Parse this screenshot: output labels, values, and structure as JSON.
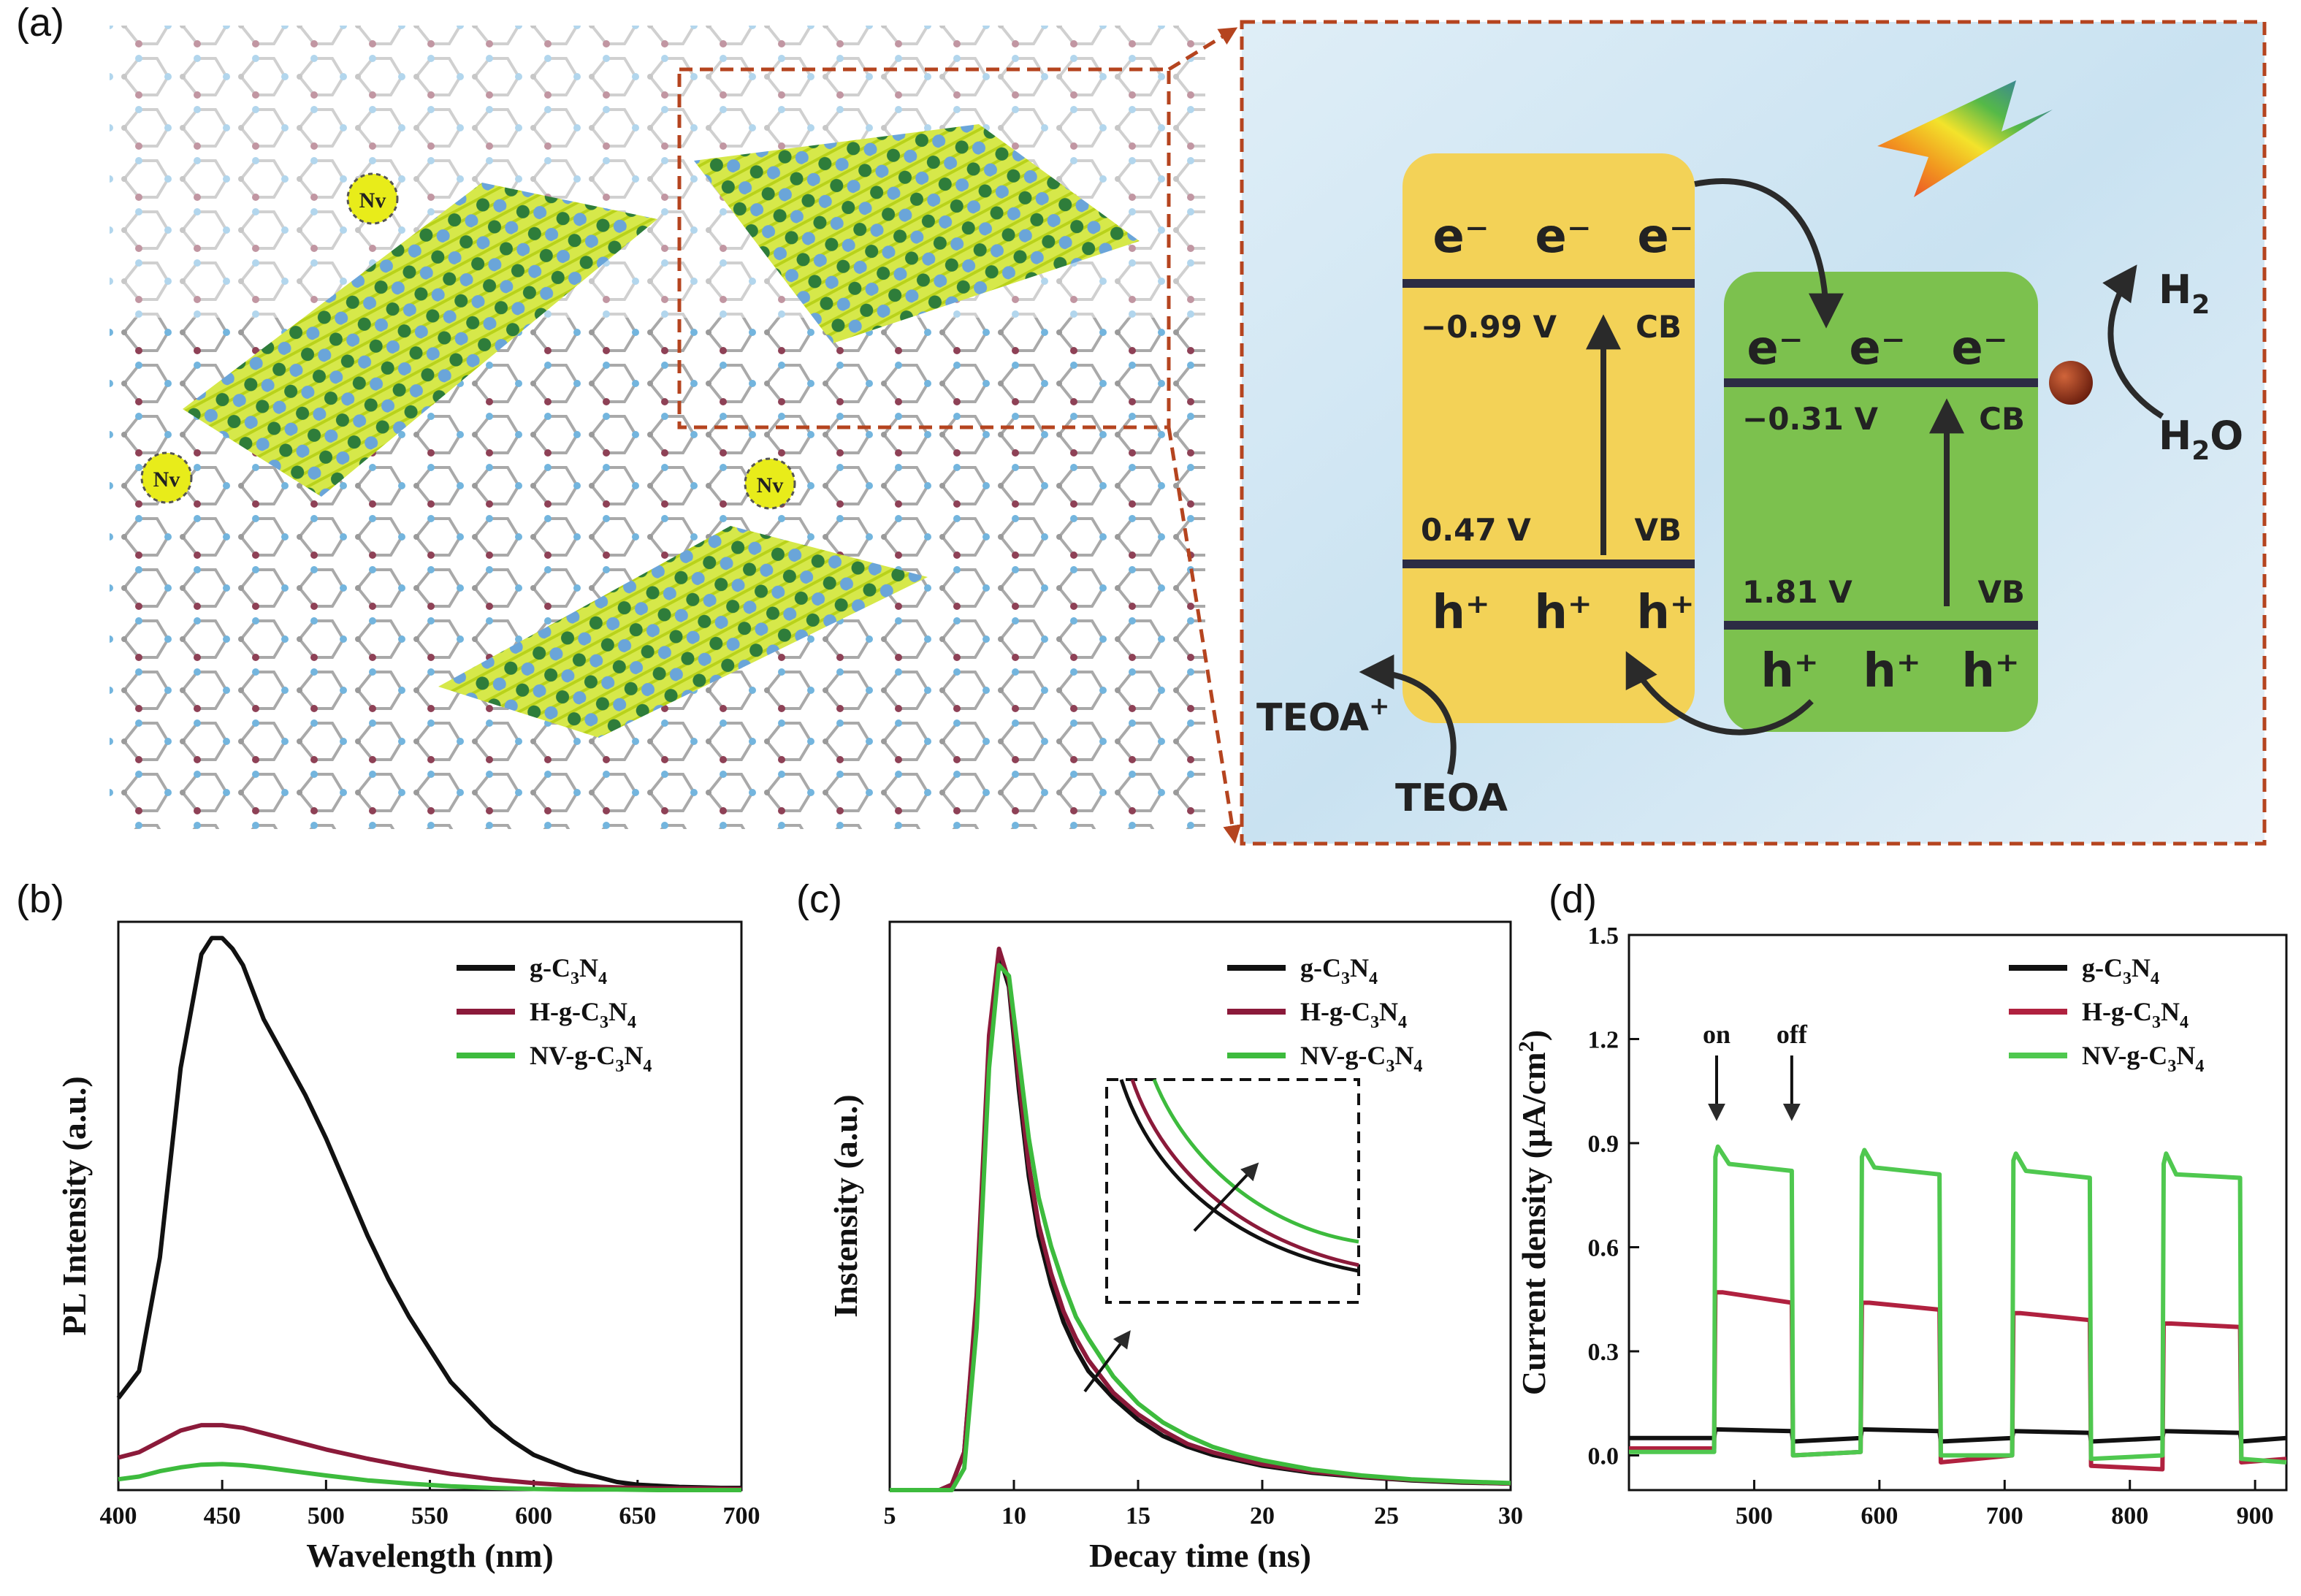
{
  "panels": {
    "a": "(a)",
    "b": "(b)",
    "c": "(c)",
    "d": "(d)"
  },
  "schematic": {
    "vacancy_label": "Nv",
    "electron": "e⁻",
    "hole": "h⁺",
    "left": {
      "cb_potential": "−0.99 V",
      "vb_potential": "0.47 V",
      "cb": "CB",
      "vb": "VB",
      "color": "#f3d257"
    },
    "right": {
      "cb_potential": "−0.31 V",
      "vb_potential": "1.81 V",
      "cb": "CB",
      "vb": "VB",
      "color": "#7cc14e"
    },
    "h2": "H",
    "h2_sub": "2",
    "h2o": "H",
    "h2o_sub": "2",
    "h2o_end": "O",
    "teoa": "TEOA",
    "teoa_plus": "TEOA",
    "teoa_plus_sup": "+"
  },
  "chart_data": [
    {
      "panel": "b",
      "type": "line",
      "xlabel": "Wavelength (nm)",
      "ylabel": "PL Intensity (a.u.)",
      "xlim": [
        400,
        700
      ],
      "xticks": [
        400,
        450,
        500,
        550,
        600,
        650,
        700
      ],
      "ylim": [
        0,
        1.05
      ],
      "legend": "top-right",
      "series": [
        {
          "name": "g-C3N4",
          "label_parts": [
            "g-C",
            "3",
            "N",
            "4"
          ],
          "color": "#111111",
          "x": [
            400,
            410,
            420,
            430,
            440,
            445,
            450,
            455,
            460,
            470,
            480,
            490,
            500,
            510,
            520,
            530,
            540,
            550,
            560,
            570,
            580,
            590,
            600,
            610,
            620,
            630,
            640,
            650,
            660,
            670,
            680,
            690,
            700
          ],
          "y": [
            0.17,
            0.22,
            0.43,
            0.78,
            0.99,
            1.02,
            1.02,
            1.0,
            0.97,
            0.87,
            0.8,
            0.73,
            0.65,
            0.56,
            0.47,
            0.39,
            0.32,
            0.26,
            0.2,
            0.16,
            0.12,
            0.09,
            0.065,
            0.05,
            0.035,
            0.025,
            0.015,
            0.01,
            0.008,
            0.006,
            0.005,
            0.004,
            0.004
          ]
        },
        {
          "name": "H-g-C3N4",
          "label_parts": [
            "H-g-C",
            "3",
            "N",
            "4"
          ],
          "color": "#8b1a3a",
          "x": [
            400,
            410,
            420,
            430,
            440,
            450,
            460,
            470,
            480,
            490,
            500,
            520,
            540,
            560,
            580,
            600,
            620,
            640,
            660,
            680,
            700
          ],
          "y": [
            0.06,
            0.07,
            0.09,
            0.11,
            0.12,
            0.12,
            0.115,
            0.105,
            0.095,
            0.085,
            0.075,
            0.058,
            0.043,
            0.03,
            0.02,
            0.013,
            0.008,
            0.005,
            0.003,
            0.003,
            0.002
          ]
        },
        {
          "name": "NV-g-C3N4",
          "label_parts": [
            "NV-g-C",
            "3",
            "N",
            "4"
          ],
          "color": "#3dbb3d",
          "x": [
            400,
            410,
            420,
            430,
            440,
            450,
            460,
            470,
            480,
            490,
            500,
            520,
            540,
            560,
            580,
            600,
            620,
            640,
            660,
            680,
            700
          ],
          "y": [
            0.02,
            0.025,
            0.035,
            0.042,
            0.047,
            0.048,
            0.046,
            0.042,
            0.037,
            0.032,
            0.027,
            0.018,
            0.012,
            0.007,
            0.004,
            0.002,
            0.001,
            0.001,
            0.0,
            0.0,
            0.0
          ]
        }
      ]
    },
    {
      "panel": "c",
      "type": "line",
      "xlabel": "Decay time (ns)",
      "ylabel": "Instensity (a.u.)",
      "xlim": [
        5,
        30
      ],
      "xticks": [
        5,
        10,
        15,
        20,
        25,
        30
      ],
      "ylim": [
        0,
        1.05
      ],
      "legend": "top-right",
      "series": [
        {
          "name": "g-C3N4",
          "label_parts": [
            "g-C",
            "3",
            "N",
            "4"
          ],
          "color": "#111111",
          "x": [
            5,
            6,
            7,
            7.5,
            8,
            8.5,
            9,
            9.4,
            9.8,
            10.2,
            10.6,
            11,
            11.5,
            12,
            12.5,
            13,
            14,
            15,
            16,
            17,
            18,
            19,
            20,
            22,
            24,
            26,
            28,
            30
          ],
          "y": [
            0.0,
            0.0,
            0.0,
            0.01,
            0.07,
            0.35,
            0.82,
            0.99,
            0.93,
            0.74,
            0.58,
            0.47,
            0.38,
            0.31,
            0.26,
            0.22,
            0.17,
            0.13,
            0.1,
            0.08,
            0.065,
            0.055,
            0.045,
            0.032,
            0.024,
            0.018,
            0.014,
            0.012
          ]
        },
        {
          "name": "H-g-C3N4",
          "label_parts": [
            "H-g-C",
            "3",
            "N",
            "4"
          ],
          "color": "#8b1a3a",
          "x": [
            5,
            6,
            7,
            7.5,
            8,
            8.5,
            9,
            9.4,
            9.8,
            10.2,
            10.6,
            11,
            11.5,
            12,
            12.5,
            13,
            14,
            15,
            16,
            17,
            18,
            19,
            20,
            22,
            24,
            26,
            28,
            30
          ],
          "y": [
            0.0,
            0.0,
            0.0,
            0.01,
            0.07,
            0.36,
            0.84,
            1.0,
            0.94,
            0.76,
            0.6,
            0.49,
            0.4,
            0.33,
            0.28,
            0.24,
            0.18,
            0.14,
            0.11,
            0.085,
            0.07,
            0.058,
            0.048,
            0.034,
            0.025,
            0.019,
            0.015,
            0.012
          ]
        },
        {
          "name": "NV-g-C3N4",
          "label_parts": [
            "NV-g-C",
            "3",
            "N",
            "4"
          ],
          "color": "#3dbb3d",
          "x": [
            5,
            6,
            7,
            7.5,
            8,
            8.5,
            9,
            9.4,
            9.8,
            10.2,
            10.6,
            11,
            11.5,
            12,
            12.5,
            13,
            14,
            15,
            16,
            17,
            18,
            19,
            20,
            22,
            24,
            26,
            28,
            30
          ],
          "y": [
            0.0,
            0.0,
            0.0,
            0.0,
            0.04,
            0.3,
            0.78,
            0.97,
            0.95,
            0.8,
            0.65,
            0.54,
            0.45,
            0.38,
            0.32,
            0.28,
            0.21,
            0.16,
            0.125,
            0.1,
            0.08,
            0.066,
            0.055,
            0.038,
            0.027,
            0.02,
            0.016,
            0.013
          ]
        }
      ],
      "annotations": []
    },
    {
      "panel": "d",
      "type": "line",
      "xlabel": "",
      "ylabel": "Current density (μA/cm²)",
      "ylabel_parts": [
        "Current density (μA/cm",
        "2",
        ")"
      ],
      "xlim": [
        400,
        925
      ],
      "xticks": [
        500,
        600,
        700,
        800,
        900
      ],
      "ylim": [
        -0.1,
        1.5
      ],
      "yticks": [
        0.0,
        0.3,
        0.6,
        0.9,
        1.2,
        1.5
      ],
      "legend": "top-right",
      "annotations": [
        {
          "text": "on",
          "x": 470
        },
        {
          "text": "off",
          "x": 530
        }
      ],
      "series": [
        {
          "name": "g-C3N4",
          "label_parts": [
            "g-C",
            "3",
            "N",
            "4"
          ],
          "color": "#111111",
          "x": [
            400,
            468,
            469,
            530,
            531,
            585,
            586,
            648,
            649,
            706,
            707,
            768,
            769,
            826,
            827,
            888,
            889,
            925
          ],
          "y": [
            0.05,
            0.05,
            0.075,
            0.07,
            0.04,
            0.05,
            0.075,
            0.07,
            0.04,
            0.05,
            0.07,
            0.065,
            0.04,
            0.05,
            0.07,
            0.065,
            0.04,
            0.05
          ]
        },
        {
          "name": "H-g-C3N4",
          "label_parts": [
            "H-g-C",
            "3",
            "N",
            "4"
          ],
          "color": "#b0213f",
          "x": [
            400,
            468,
            469,
            475,
            530,
            531,
            585,
            586,
            592,
            648,
            649,
            706,
            707,
            713,
            768,
            769,
            826,
            827,
            833,
            888,
            889,
            925
          ],
          "y": [
            0.02,
            0.02,
            0.47,
            0.47,
            0.44,
            0.0,
            0.01,
            0.44,
            0.44,
            0.42,
            -0.02,
            0.0,
            0.41,
            0.41,
            0.39,
            -0.03,
            -0.04,
            0.38,
            0.38,
            0.37,
            -0.02,
            -0.01
          ]
        },
        {
          "name": "NV-g-C3N4",
          "label_parts": [
            "NV-g-C",
            "3",
            "N",
            "4"
          ],
          "color": "#4fc84f",
          "x": [
            400,
            468,
            469,
            471,
            480,
            530,
            531,
            585,
            586,
            588,
            596,
            648,
            649,
            706,
            707,
            709,
            717,
            768,
            769,
            826,
            827,
            829,
            837,
            888,
            889,
            925
          ],
          "y": [
            0.01,
            0.01,
            0.86,
            0.89,
            0.84,
            0.82,
            0.0,
            0.01,
            0.86,
            0.88,
            0.83,
            0.81,
            0.0,
            0.0,
            0.85,
            0.87,
            0.82,
            0.8,
            -0.01,
            0.0,
            0.84,
            0.87,
            0.81,
            0.8,
            -0.01,
            -0.02
          ]
        }
      ]
    }
  ]
}
